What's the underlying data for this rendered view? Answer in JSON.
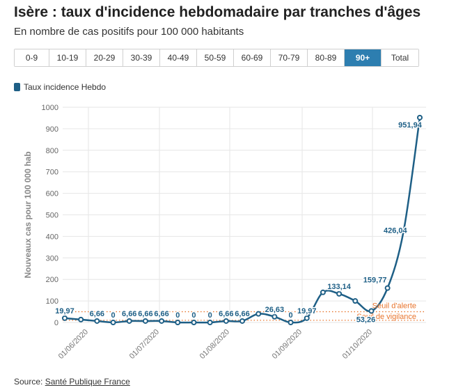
{
  "header": {
    "title": "Isère : taux d'incidence hebdomadaire par tranches d'âges",
    "subtitle": "En nombre de cas positifs pour 100 000 habitants"
  },
  "tabs": [
    {
      "label": "0-9",
      "active": false
    },
    {
      "label": "10-19",
      "active": false
    },
    {
      "label": "20-29",
      "active": false
    },
    {
      "label": "30-39",
      "active": false
    },
    {
      "label": "40-49",
      "active": false
    },
    {
      "label": "50-59",
      "active": false
    },
    {
      "label": "60-69",
      "active": false
    },
    {
      "label": "70-79",
      "active": false
    },
    {
      "label": "80-89",
      "active": false
    },
    {
      "label": "90+",
      "active": true
    },
    {
      "label": "Total",
      "active": false
    }
  ],
  "colors": {
    "series": "#1e5f86",
    "threshold": "#e8742c",
    "tab_active": "#2d7eb0"
  },
  "source": {
    "prefix": "Source: ",
    "link": "Santé Publique France"
  },
  "chart_data": {
    "type": "line",
    "title": "",
    "xlabel": "",
    "ylabel": "Nouveaux cas pour 100 000 hab",
    "ylim": [
      0,
      1000
    ],
    "yticks": [
      0,
      100,
      200,
      300,
      400,
      500,
      600,
      700,
      800,
      900,
      1000
    ],
    "grid": true,
    "legend": "top-left",
    "xtick_labels": [
      "01/06/2020",
      "01/07/2020",
      "01/08/2020",
      "01/09/2020",
      "01/10/2020"
    ],
    "series": [
      {
        "name": "Taux incidence Hebdo",
        "values": [
          19.97,
          13.3,
          6.66,
          0,
          6.66,
          6.66,
          6.66,
          0,
          0,
          0,
          6.66,
          6.66,
          39.9,
          26.63,
          0,
          19.97,
          139.8,
          133.14,
          99.85,
          53.26,
          159.77,
          426.04,
          951.94
        ],
        "labels": [
          "19,97",
          "",
          "6,66",
          "0",
          "6,66",
          "6,66",
          "6,66",
          "0",
          "0",
          "0",
          "6,66",
          "6,66",
          "",
          "26,63",
          "0",
          "19,97",
          "",
          "133,14",
          "",
          "53,26",
          "159,77",
          "426,04",
          "951,94"
        ]
      }
    ],
    "annotations": [
      {
        "text": "Seuil d'alerte",
        "value": 50
      },
      {
        "text": "Seuil de vigilance",
        "value": 10
      }
    ]
  }
}
